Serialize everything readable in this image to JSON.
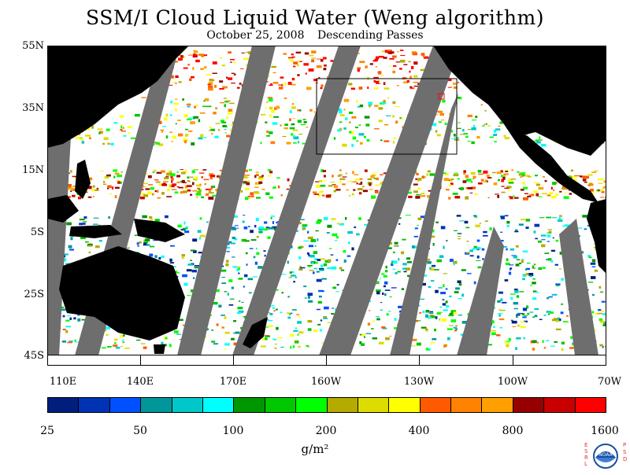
{
  "title": "SSM/I Cloud Liquid Water (Weng algorithm)",
  "subtitle": {
    "date": "October 25, 2008",
    "pass": "Descending Passes"
  },
  "y_axis_labels": [
    "55N",
    "35N",
    "15N",
    "5S",
    "25S",
    "45S"
  ],
  "x_axis_labels": [
    "110E",
    "140E",
    "170E",
    "160W",
    "130W",
    "100W",
    "70W"
  ],
  "colorbar": {
    "labels": [
      "25",
      "50",
      "100",
      "200",
      "400",
      "800",
      "1600"
    ],
    "colors": [
      "#001e7c",
      "#0032b4",
      "#0050ff",
      "#00969a",
      "#00c8c8",
      "#00ffff",
      "#009600",
      "#00c800",
      "#00ff00",
      "#b4aa00",
      "#dcdc00",
      "#ffff00",
      "#ff5a00",
      "#ff8200",
      "#ffa000",
      "#960000",
      "#c80000",
      "#ff0000"
    ],
    "units": "g/m²"
  },
  "map": {
    "land_color": "#000000",
    "no_data_color": "#6e6e6e",
    "background_color": "#ffffff"
  },
  "logo": {
    "name": "noaa-logo",
    "left_letters": "ESRL",
    "right_letters": "PSD",
    "emblem_text": "NOAA"
  }
}
